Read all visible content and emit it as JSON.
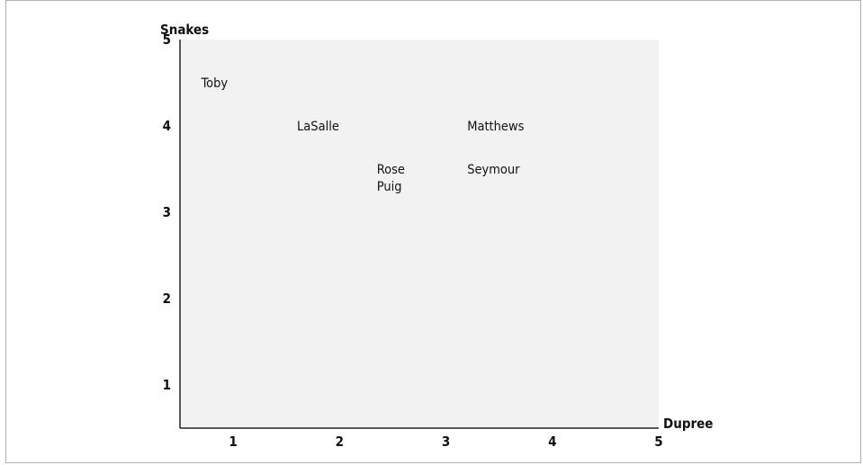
{
  "chart_data": {
    "type": "scatter",
    "xlabel": "Dupree",
    "ylabel": "Snakes",
    "xlim": [
      0.5,
      5
    ],
    "ylim": [
      0.5,
      5
    ],
    "xticks": [
      "1",
      "2",
      "3",
      "4",
      "5"
    ],
    "yticks": [
      "1",
      "2",
      "3",
      "4",
      "5"
    ],
    "grid": false,
    "points": [
      {
        "label": "Toby",
        "x": 0.7,
        "y": 4.5
      },
      {
        "label": "LaSalle",
        "x": 1.6,
        "y": 4.0
      },
      {
        "label": "Matthews",
        "x": 3.2,
        "y": 4.0
      },
      {
        "label": "Rose",
        "x": 2.35,
        "y": 3.5
      },
      {
        "label": "Puig",
        "x": 2.35,
        "y": 3.3
      },
      {
        "label": "Seymour",
        "x": 3.2,
        "y": 3.5
      }
    ],
    "colors": {
      "plot_background": "#f2f2f2",
      "axis": "#222222",
      "text": "#111111"
    }
  }
}
